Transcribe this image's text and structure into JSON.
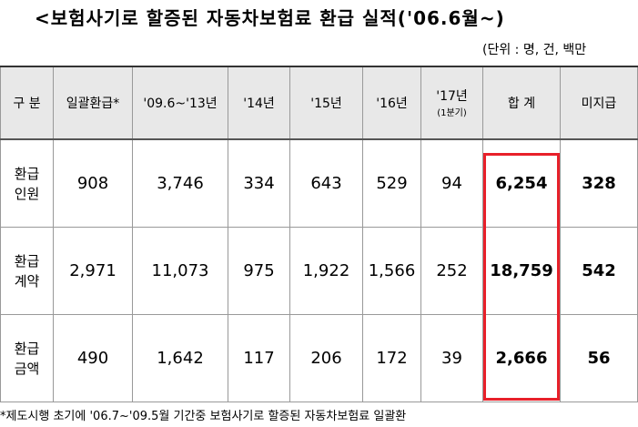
{
  "header": {
    "title": "<보험사기로 할증된 자동차보험료 환급 실적('06.6월~)",
    "unit": "(단위 : 명, 건, 백만"
  },
  "table": {
    "columns": [
      [
        "구 분"
      ],
      [
        "일괄환급*"
      ],
      [
        "'09.6~'13년"
      ],
      [
        "'14년"
      ],
      [
        "'15년"
      ],
      [
        "'16년"
      ],
      [
        "'17년",
        "(1분기)"
      ],
      [
        "합 계"
      ],
      [
        "미지급"
      ]
    ],
    "rows": [
      {
        "label": [
          "환급",
          "인원"
        ],
        "cells": [
          "908",
          "3,746",
          "334",
          "643",
          "529",
          "94",
          "6,254",
          "328"
        ]
      },
      {
        "label": [
          "환급",
          "계약"
        ],
        "cells": [
          "2,971",
          "11,073",
          "975",
          "1,922",
          "1,566",
          "252",
          "18,759",
          "542"
        ]
      },
      {
        "label": [
          "환급",
          "금액"
        ],
        "cells": [
          "490",
          "1,642",
          "117",
          "206",
          "172",
          "39",
          "2,666",
          "56"
        ]
      }
    ]
  },
  "footnote": "*제도시행 초기에 '06.7~'09.5월 기간중 보험사기로 할증된 자동차보험료 일괄환"
}
